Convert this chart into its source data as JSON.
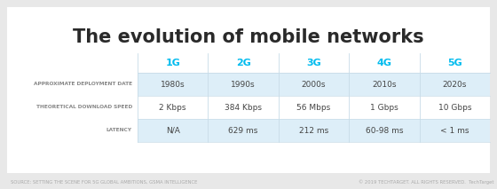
{
  "title": "The evolution of mobile networks",
  "title_fontsize": 15,
  "title_color": "#2a2a2a",
  "bg_color": "#e8e8e8",
  "card_bg": "#ffffff",
  "columns": [
    "1G",
    "2G",
    "3G",
    "4G",
    "5G"
  ],
  "col_color": "#00bbee",
  "row_labels": [
    "APPROXIMATE DEPLOYMENT DATE",
    "THEORETICAL DOWNLOAD SPEED",
    "LATENCY"
  ],
  "row_label_color": "#888888",
  "row_label_fontsize": 4.2,
  "row_data": [
    [
      "1980s",
      "1990s",
      "2000s",
      "2010s",
      "2020s"
    ],
    [
      "2 Kbps",
      "384 Kbps",
      "56 Mbps",
      "1 Gbps",
      "10 Gbps"
    ],
    [
      "N/A",
      "629 ms",
      "212 ms",
      "60-98 ms",
      "< 1 ms"
    ]
  ],
  "data_color": "#444444",
  "data_fontsize": 6.5,
  "shaded_rows": [
    0,
    2
  ],
  "shaded_color": "#ddeef8",
  "divider_color": "#c8dce8",
  "col_header_fontsize": 8,
  "footer_left": "SOURCE: SETTING THE SCENE FOR 5G GLOBAL AMBITIONS, GSMA INTELLIGENCE",
  "footer_right": "© 2019 TECHTARGET. ALL RIGHTS RESERVED.  TechTarget",
  "footer_color": "#aaaaaa",
  "footer_fontsize": 3.8
}
